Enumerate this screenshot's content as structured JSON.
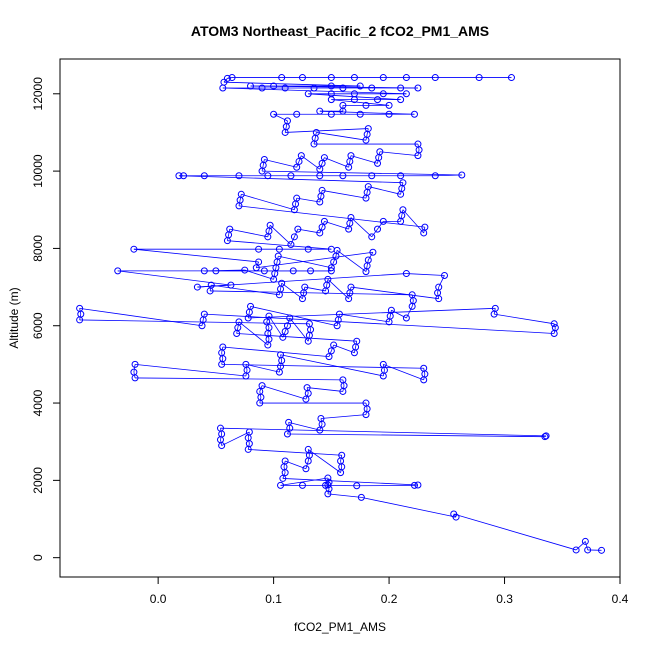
{
  "chart_data": {
    "type": "scatter",
    "title": "ATOM3 Northeast_Pacific_2 fCO2_PM1_AMS",
    "xlabel": "fCO2_PM1_AMS",
    "ylabel": "Altitude (m)",
    "xlim": [
      -0.085,
      0.4
    ],
    "ylim": [
      -500,
      12900
    ],
    "xticks": [
      0.0,
      0.1,
      0.2,
      0.3,
      0.4
    ],
    "xtick_labels": [
      "0.0",
      "0.1",
      "0.2",
      "0.3",
      "0.4"
    ],
    "yticks": [
      0,
      2000,
      4000,
      6000,
      8000,
      10000,
      12000
    ],
    "ytick_labels": [
      "0",
      "2000",
      "4000",
      "6000",
      "8000",
      "10000",
      "12000"
    ],
    "grid": false,
    "legend": "none",
    "colors": {
      "series": "#0000ff",
      "axis": "#000000"
    },
    "series": [
      {
        "marker": "open-circle",
        "connect": true,
        "points": [
          [
            0.384,
            190
          ],
          [
            0.372,
            200
          ],
          [
            0.37,
            420
          ],
          [
            0.362,
            200
          ],
          [
            0.256,
            1130
          ],
          [
            0.258,
            1050
          ],
          [
            0.176,
            1560
          ],
          [
            0.147,
            1650
          ],
          [
            0.148,
            1780
          ],
          [
            0.147,
            1880
          ],
          [
            0.148,
            1950
          ],
          [
            0.147,
            2060
          ],
          [
            0.106,
            1870
          ],
          [
            0.125,
            1870
          ],
          [
            0.145,
            1870
          ],
          [
            0.172,
            1860
          ],
          [
            0.222,
            1870
          ],
          [
            0.225,
            1880
          ],
          [
            0.108,
            2050
          ],
          [
            0.11,
            2200
          ],
          [
            0.109,
            2350
          ],
          [
            0.11,
            2500
          ],
          [
            0.128,
            2300
          ],
          [
            0.13,
            2500
          ],
          [
            0.131,
            2650
          ],
          [
            0.13,
            2800
          ],
          [
            0.158,
            2200
          ],
          [
            0.159,
            2350
          ],
          [
            0.158,
            2500
          ],
          [
            0.159,
            2650
          ],
          [
            0.078,
            2800
          ],
          [
            0.079,
            2950
          ],
          [
            0.078,
            3100
          ],
          [
            0.079,
            3250
          ],
          [
            0.055,
            2900
          ],
          [
            0.054,
            3050
          ],
          [
            0.055,
            3200
          ],
          [
            0.054,
            3350
          ],
          [
            0.336,
            3150
          ],
          [
            0.335,
            3130
          ],
          [
            0.112,
            3200
          ],
          [
            0.114,
            3350
          ],
          [
            0.113,
            3500
          ],
          [
            0.14,
            3300
          ],
          [
            0.142,
            3450
          ],
          [
            0.141,
            3600
          ],
          [
            0.18,
            3700
          ],
          [
            0.181,
            3850
          ],
          [
            0.18,
            4000
          ],
          [
            0.088,
            4000
          ],
          [
            0.089,
            4150
          ],
          [
            0.088,
            4300
          ],
          [
            0.09,
            4450
          ],
          [
            0.128,
            4100
          ],
          [
            0.13,
            4250
          ],
          [
            0.129,
            4400
          ],
          [
            0.16,
            4300
          ],
          [
            0.161,
            4450
          ],
          [
            0.16,
            4600
          ],
          [
            -0.02,
            4650
          ],
          [
            -0.021,
            4800
          ],
          [
            -0.02,
            5000
          ],
          [
            0.076,
            4700
          ],
          [
            0.077,
            4850
          ],
          [
            0.076,
            5000
          ],
          [
            0.105,
            4800
          ],
          [
            0.106,
            4950
          ],
          [
            0.107,
            5100
          ],
          [
            0.106,
            5250
          ],
          [
            0.195,
            4700
          ],
          [
            0.196,
            4850
          ],
          [
            0.195,
            5000
          ],
          [
            0.23,
            4600
          ],
          [
            0.231,
            4750
          ],
          [
            0.23,
            4900
          ],
          [
            0.055,
            5000
          ],
          [
            0.056,
            5150
          ],
          [
            0.055,
            5300
          ],
          [
            0.056,
            5450
          ],
          [
            0.148,
            5200
          ],
          [
            0.15,
            5350
          ],
          [
            0.152,
            5500
          ],
          [
            0.17,
            5300
          ],
          [
            0.171,
            5450
          ],
          [
            0.172,
            5600
          ],
          [
            0.068,
            5800
          ],
          [
            0.069,
            5950
          ],
          [
            0.07,
            6100
          ],
          [
            0.095,
            5500
          ],
          [
            0.096,
            5650
          ],
          [
            0.095,
            5800
          ],
          [
            0.096,
            5950
          ],
          [
            0.094,
            6100
          ],
          [
            0.096,
            6250
          ],
          [
            0.108,
            5700
          ],
          [
            0.11,
            5850
          ],
          [
            0.112,
            6000
          ],
          [
            0.114,
            6200
          ],
          [
            0.13,
            5600
          ],
          [
            0.131,
            5750
          ],
          [
            0.132,
            5900
          ],
          [
            0.131,
            6050
          ],
          [
            -0.068,
            6150
          ],
          [
            -0.067,
            6300
          ],
          [
            -0.068,
            6450
          ],
          [
            0.038,
            6000
          ],
          [
            0.039,
            6150
          ],
          [
            0.04,
            6300
          ],
          [
            0.343,
            5800
          ],
          [
            0.344,
            5950
          ],
          [
            0.343,
            6050
          ],
          [
            0.291,
            6300
          ],
          [
            0.292,
            6450
          ],
          [
            0.078,
            6200
          ],
          [
            0.079,
            6350
          ],
          [
            0.08,
            6500
          ],
          [
            0.155,
            6000
          ],
          [
            0.156,
            6150
          ],
          [
            0.157,
            6300
          ],
          [
            0.2,
            6100
          ],
          [
            0.201,
            6250
          ],
          [
            0.202,
            6400
          ],
          [
            0.215,
            6200
          ],
          [
            0.22,
            6500
          ],
          [
            0.221,
            6650
          ],
          [
            0.22,
            6800
          ],
          [
            0.045,
            6900
          ],
          [
            0.046,
            7050
          ],
          [
            0.105,
            6800
          ],
          [
            0.106,
            6950
          ],
          [
            0.107,
            7100
          ],
          [
            0.125,
            6700
          ],
          [
            0.126,
            6850
          ],
          [
            0.127,
            7000
          ],
          [
            0.145,
            6900
          ],
          [
            0.146,
            7050
          ],
          [
            0.147,
            7200
          ],
          [
            0.165,
            6700
          ],
          [
            0.166,
            6850
          ],
          [
            0.167,
            7000
          ],
          [
            0.243,
            6700
          ],
          [
            0.242,
            6850
          ],
          [
            0.243,
            7000
          ],
          [
            0.248,
            7300
          ],
          [
            0.215,
            7350
          ],
          [
            0.034,
            7000
          ],
          [
            0.063,
            7050
          ],
          [
            -0.035,
            7420
          ],
          [
            0.05,
            7420
          ],
          [
            0.092,
            7420
          ],
          [
            0.117,
            7420
          ],
          [
            0.132,
            7420
          ],
          [
            0.15,
            7420
          ],
          [
            0.04,
            7420
          ],
          [
            0.075,
            7440
          ],
          [
            0.1,
            7200
          ],
          [
            0.101,
            7350
          ],
          [
            0.102,
            7500
          ],
          [
            0.103,
            7650
          ],
          [
            0.104,
            7800
          ],
          [
            0.15,
            7500
          ],
          [
            0.152,
            7650
          ],
          [
            0.154,
            7800
          ],
          [
            0.155,
            7950
          ],
          [
            0.18,
            7400
          ],
          [
            0.181,
            7550
          ],
          [
            0.182,
            7700
          ],
          [
            0.186,
            7900
          ],
          [
            0.085,
            7500
          ],
          [
            0.087,
            7650
          ],
          [
            -0.021,
            7980
          ],
          [
            0.087,
            7980
          ],
          [
            0.105,
            7980
          ],
          [
            0.13,
            7980
          ],
          [
            0.15,
            7980
          ],
          [
            0.06,
            8200
          ],
          [
            0.061,
            8350
          ],
          [
            0.062,
            8500
          ],
          [
            0.095,
            8300
          ],
          [
            0.096,
            8450
          ],
          [
            0.097,
            8600
          ],
          [
            0.115,
            8100
          ],
          [
            0.118,
            8300
          ],
          [
            0.121,
            8500
          ],
          [
            0.14,
            8400
          ],
          [
            0.142,
            8550
          ],
          [
            0.144,
            8700
          ],
          [
            0.165,
            8500
          ],
          [
            0.166,
            8650
          ],
          [
            0.167,
            8800
          ],
          [
            0.185,
            8300
          ],
          [
            0.19,
            8500
          ],
          [
            0.195,
            8700
          ],
          [
            0.21,
            8700
          ],
          [
            0.211,
            8850
          ],
          [
            0.212,
            9000
          ],
          [
            0.23,
            8400
          ],
          [
            0.231,
            8550
          ],
          [
            0.07,
            9100
          ],
          [
            0.071,
            9250
          ],
          [
            0.072,
            9400
          ],
          [
            0.118,
            9000
          ],
          [
            0.119,
            9150
          ],
          [
            0.12,
            9300
          ],
          [
            0.14,
            9200
          ],
          [
            0.141,
            9350
          ],
          [
            0.142,
            9500
          ],
          [
            0.18,
            9300
          ],
          [
            0.181,
            9450
          ],
          [
            0.182,
            9600
          ],
          [
            0.21,
            9400
          ],
          [
            0.211,
            9550
          ],
          [
            0.212,
            9700
          ],
          [
            0.018,
            9880
          ],
          [
            0.022,
            9880
          ],
          [
            0.04,
            9880
          ],
          [
            0.07,
            9880
          ],
          [
            0.095,
            9880
          ],
          [
            0.115,
            9880
          ],
          [
            0.14,
            9880
          ],
          [
            0.16,
            9880
          ],
          [
            0.185,
            9880
          ],
          [
            0.21,
            9880
          ],
          [
            0.24,
            9880
          ],
          [
            0.263,
            9900
          ],
          [
            0.09,
            10000
          ],
          [
            0.091,
            10150
          ],
          [
            0.092,
            10300
          ],
          [
            0.12,
            10100
          ],
          [
            0.122,
            10250
          ],
          [
            0.124,
            10400
          ],
          [
            0.14,
            10050
          ],
          [
            0.142,
            10200
          ],
          [
            0.144,
            10350
          ],
          [
            0.165,
            10100
          ],
          [
            0.166,
            10250
          ],
          [
            0.167,
            10400
          ],
          [
            0.19,
            10200
          ],
          [
            0.191,
            10350
          ],
          [
            0.192,
            10500
          ],
          [
            0.225,
            10400
          ],
          [
            0.226,
            10550
          ],
          [
            0.225,
            10700
          ],
          [
            0.135,
            10700
          ],
          [
            0.136,
            10850
          ],
          [
            0.137,
            11000
          ],
          [
            0.18,
            10800
          ],
          [
            0.181,
            10950
          ],
          [
            0.182,
            11100
          ],
          [
            0.11,
            11000
          ],
          [
            0.111,
            11150
          ],
          [
            0.112,
            11300
          ],
          [
            0.1,
            11470
          ],
          [
            0.12,
            11470
          ],
          [
            0.15,
            11470
          ],
          [
            0.175,
            11470
          ],
          [
            0.2,
            11470
          ],
          [
            0.222,
            11470
          ],
          [
            0.14,
            11550
          ],
          [
            0.16,
            11550
          ],
          [
            0.16,
            11700
          ],
          [
            0.18,
            11700
          ],
          [
            0.2,
            11700
          ],
          [
            0.15,
            11850
          ],
          [
            0.17,
            11850
          ],
          [
            0.19,
            11850
          ],
          [
            0.21,
            11850
          ],
          [
            0.13,
            12000
          ],
          [
            0.15,
            12000
          ],
          [
            0.17,
            12000
          ],
          [
            0.195,
            12000
          ],
          [
            0.215,
            12000
          ],
          [
            0.056,
            12150
          ],
          [
            0.09,
            12150
          ],
          [
            0.11,
            12150
          ],
          [
            0.135,
            12150
          ],
          [
            0.16,
            12150
          ],
          [
            0.185,
            12150
          ],
          [
            0.21,
            12150
          ],
          [
            0.225,
            12150
          ],
          [
            0.08,
            12200
          ],
          [
            0.1,
            12200
          ],
          [
            0.15,
            12200
          ],
          [
            0.175,
            12200
          ],
          [
            0.057,
            12300
          ],
          [
            0.06,
            12400
          ],
          [
            0.064,
            12420
          ],
          [
            0.107,
            12420
          ],
          [
            0.125,
            12420
          ],
          [
            0.15,
            12420
          ],
          [
            0.17,
            12420
          ],
          [
            0.195,
            12420
          ],
          [
            0.215,
            12420
          ],
          [
            0.24,
            12420
          ],
          [
            0.278,
            12420
          ],
          [
            0.306,
            12420
          ]
        ]
      }
    ]
  }
}
